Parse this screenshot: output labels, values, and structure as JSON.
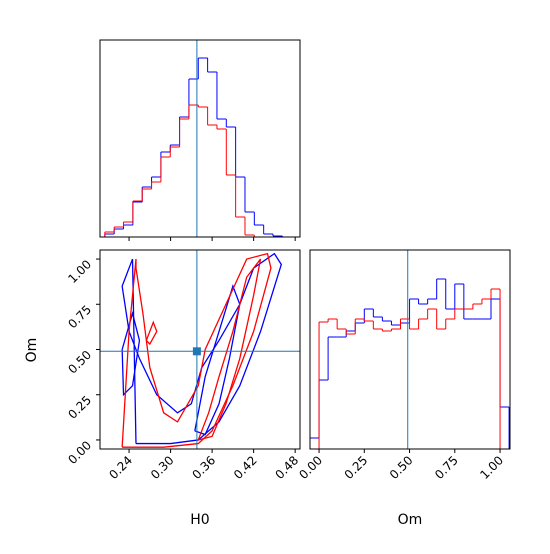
{
  "chart_data": {
    "type": "corner",
    "h0_hist": {
      "bins": [
        0.205,
        0.2185,
        0.232,
        0.2455,
        0.259,
        0.2725,
        0.286,
        0.2995,
        0.313,
        0.3265,
        0.34,
        0.3535,
        0.367,
        0.3805,
        0.394,
        0.4075,
        0.421,
        0.4345,
        0.448,
        0.4615,
        0.475
      ],
      "ylim": [
        0,
        197
      ],
      "series": [
        {
          "color": "#0000ff",
          "values": [
            3,
            8,
            12,
            35,
            50,
            60,
            85,
            92,
            120,
            158,
            179,
            165,
            118,
            110,
            60,
            25,
            12,
            3,
            1,
            0
          ]
        },
        {
          "color": "#ff0000",
          "values": [
            5,
            10,
            15,
            36,
            48,
            55,
            80,
            90,
            118,
            132,
            130,
            112,
            108,
            62,
            20,
            2,
            0,
            0,
            0,
            0
          ]
        }
      ]
    },
    "om_hist": {
      "bins": [
        -0.05,
        0,
        0.05,
        0.1,
        0.15,
        0.2,
        0.25,
        0.3,
        0.35,
        0.4,
        0.45,
        0.5,
        0.55,
        0.6,
        0.65,
        0.7,
        0.75,
        0.8,
        0.85,
        0.9,
        0.95,
        1,
        1.05
      ],
      "xlim": [
        -0.05,
        1.055
      ],
      "ylim": [
        0,
        199
      ],
      "xlabel": "Om",
      "xticks": [
        {
          "value": 0,
          "label": "0.00"
        },
        0.25,
        {
          "value": 0.5,
          "label": "0.50"
        },
        0.75,
        {
          "value": 1,
          "label": "1.00"
        }
      ],
      "series": [
        {
          "color": "#0000ff",
          "values": [
            11,
            69,
            112,
            112,
            118,
            126,
            140,
            132,
            128,
            124,
            126,
            150,
            145,
            150,
            170,
            140,
            165,
            130,
            130,
            130,
            150,
            42
          ]
        },
        {
          "color": "#ff0000",
          "values": [
            0,
            127,
            130,
            120,
            115,
            130,
            128,
            120,
            118,
            120,
            130,
            120,
            130,
            140,
            120,
            130,
            140,
            140,
            145,
            150,
            160,
            0
          ]
        }
      ]
    },
    "contour": {
      "xlim": [
        0.198,
        0.487
      ],
      "ylim": [
        -0.05,
        1.05
      ],
      "xlabel": "H0",
      "ylabel": "Om",
      "xticks": [
        0.24,
        {
          "value": 0.3,
          "label": "0.30"
        },
        0.36,
        0.42,
        0.48
      ],
      "yticks": [
        {
          "value": 0,
          "label": "0.00"
        },
        0.25,
        {
          "value": 0.5,
          "label": "0.50"
        },
        0.75,
        {
          "value": 1,
          "label": "1.00"
        }
      ],
      "series": [
        {
          "color": "#0000ff",
          "lines": [
            {
              "x": [
                0.25,
                0.3,
                0.34,
                0.37,
                0.4,
                0.43,
                0.46,
                0.45,
                0.42,
                0.4,
                0.37,
                0.345,
                0.33,
                0.31,
                0.28,
                0.255,
                0.24,
                0.23,
                0.245,
                0.25
              ],
              "y": [
                -0.02,
                -0.02,
                0,
                0.1,
                0.3,
                0.6,
                0.97,
                1.03,
                0.95,
                0.75,
                0.55,
                0.4,
                0.2,
                0.15,
                0.25,
                0.45,
                0.6,
                0.85,
                1,
                -0.02
              ]
            },
            {
              "x": [
                0.335,
                0.35,
                0.37,
                0.385,
                0.4,
                0.39,
                0.37,
                0.35,
                0.335
              ],
              "y": [
                0.05,
                0.03,
                0.2,
                0.45,
                0.75,
                0.85,
                0.6,
                0.35,
                0.05
              ]
            },
            {
              "x": [
                0.23,
                0.245,
                0.255,
                0.245,
                0.232,
                0.23
              ],
              "y": [
                0.5,
                0.7,
                0.55,
                0.3,
                0.25,
                0.5
              ]
            }
          ]
        },
        {
          "color": "#ff0000",
          "lines": [
            {
              "x": [
                0.23,
                0.29,
                0.34,
                0.36,
                0.39,
                0.42,
                0.445,
                0.44,
                0.41,
                0.38,
                0.35,
                0.34,
                0.31,
                0.29,
                0.27,
                0.26,
                0.25,
                0.25,
                0.24,
                0.23
              ],
              "y": [
                -0.04,
                -0.04,
                -0.02,
                0.05,
                0.3,
                0.6,
                0.95,
                1.03,
                1,
                0.75,
                0.5,
                0.3,
                0.1,
                0.15,
                0.4,
                0.7,
                0.95,
                1,
                0.6,
                -0.04
              ]
            },
            {
              "x": [
                0.34,
                0.36,
                0.38,
                0.4,
                0.42,
                0.43,
                0.41,
                0.39,
                0.37,
                0.355,
                0.34
              ],
              "y": [
                0,
                0.02,
                0.2,
                0.45,
                0.8,
                1,
                0.9,
                0.6,
                0.35,
                0.15,
                0
              ]
            },
            {
              "x": [
                0.265,
                0.275,
                0.28,
                0.27,
                0.265
              ],
              "y": [
                0.55,
                0.65,
                0.6,
                0.53,
                0.55
              ]
            }
          ]
        }
      ]
    },
    "truth": {
      "x": 0.338,
      "y": 0.49,
      "color": "#1f77b4"
    }
  }
}
